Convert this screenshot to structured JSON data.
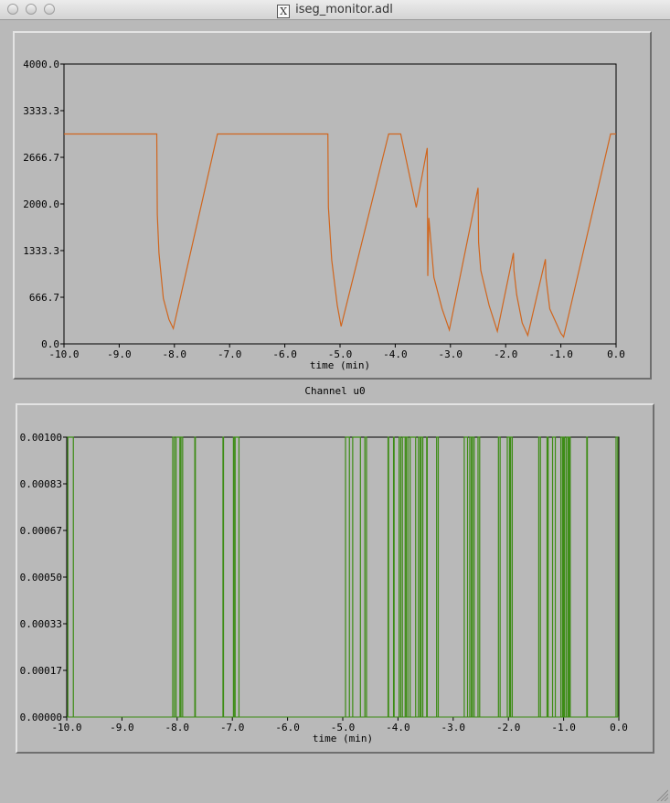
{
  "window": {
    "title": "iseg_monitor.adl",
    "title_icon": "x11-icon"
  },
  "separator_label": "Channel u0",
  "chart_data": [
    {
      "type": "line",
      "xlabel": "time (min)",
      "ylabel": "",
      "xlim": [
        -10.0,
        0.0
      ],
      "ylim": [
        0.0,
        4000.0
      ],
      "x_ticks": [
        "-10.0",
        "-9.0",
        "-8.0",
        "-7.0",
        "-6.0",
        "-5.0",
        "-4.0",
        "-3.0",
        "-2.0",
        "-1.0",
        "0.0"
      ],
      "y_ticks": [
        "0.0",
        "666.7",
        "1333.3",
        "2000.0",
        "2666.7",
        "3333.3",
        "4000.0"
      ],
      "series": [
        {
          "color": "#d0661e",
          "x": [
            -10.0,
            -8.32,
            -8.31,
            -8.28,
            -8.2,
            -8.1,
            -8.02,
            -7.22,
            -5.22,
            -5.21,
            -5.15,
            -5.05,
            -4.98,
            -4.12,
            -3.9,
            -3.62,
            -3.42,
            -3.41,
            -3.39,
            -3.3,
            -3.15,
            -3.02,
            -2.5,
            -2.49,
            -2.45,
            -2.3,
            -2.15,
            -1.86,
            -1.85,
            -1.8,
            -1.7,
            -1.6,
            -1.28,
            -1.27,
            -1.2,
            -1.0,
            -0.95,
            -0.1,
            0.0
          ],
          "y": [
            3000,
            3000,
            1850,
            1300,
            650,
            350,
            220,
            3000,
            3000,
            1950,
            1200,
            550,
            250,
            3000,
            3000,
            1950,
            2800,
            970,
            1800,
            950,
            500,
            200,
            2230,
            1450,
            1050,
            550,
            180,
            1300,
            1050,
            700,
            300,
            120,
            1210,
            950,
            500,
            150,
            100,
            3000,
            3000
          ]
        }
      ]
    },
    {
      "type": "line",
      "xlabel": "time (min)",
      "ylabel": "",
      "xlim": [
        -10.0,
        0.0
      ],
      "ylim": [
        0.0,
        0.001
      ],
      "x_ticks": [
        "-10.0",
        "-9.0",
        "-8.0",
        "-7.0",
        "-6.0",
        "-5.0",
        "-4.0",
        "-3.0",
        "-2.0",
        "-1.0",
        "0.0"
      ],
      "y_ticks": [
        "0.00000",
        "0.00017",
        "0.00033",
        "0.00050",
        "0.00067",
        "0.00083",
        "0.00100"
      ],
      "series": [
        {
          "color": "#3c8c14",
          "baseline": 0.0,
          "level": 0.001,
          "pulses": [
            [
              -9.98,
              -9.88
            ],
            [
              -8.08,
              -8.05
            ],
            [
              -8.02,
              -7.95
            ],
            [
              -7.93,
              -7.9
            ],
            [
              -7.68,
              -7.67
            ],
            [
              -7.17,
              -7.16
            ],
            [
              -6.98,
              -6.97
            ],
            [
              -6.95,
              -6.88
            ],
            [
              -4.95,
              -4.88
            ],
            [
              -4.82,
              -4.68
            ],
            [
              -4.6,
              -4.57
            ],
            [
              -4.18,
              -4.17
            ],
            [
              -4.08,
              -4.07
            ],
            [
              -3.98,
              -3.95
            ],
            [
              -3.92,
              -3.87
            ],
            [
              -3.85,
              -3.82
            ],
            [
              -3.78,
              -3.68
            ],
            [
              -3.63,
              -3.6
            ],
            [
              -3.58,
              -3.55
            ],
            [
              -3.48,
              -3.47
            ],
            [
              -3.3,
              -3.27
            ],
            [
              -2.8,
              -2.74
            ],
            [
              -2.7,
              -2.67
            ],
            [
              -2.65,
              -2.62
            ],
            [
              -2.55,
              -2.52
            ],
            [
              -2.18,
              -2.15
            ],
            [
              -2.02,
              -1.98
            ],
            [
              -1.96,
              -1.93
            ],
            [
              -1.45,
              -1.42
            ],
            [
              -1.3,
              -1.28
            ],
            [
              -1.2,
              -1.15
            ],
            [
              -1.05,
              -1.02
            ],
            [
              -1.0,
              -0.98
            ],
            [
              -0.95,
              -0.92
            ],
            [
              -0.9,
              -0.88
            ],
            [
              -0.58,
              -0.57
            ],
            [
              -0.05,
              -0.02
            ]
          ]
        }
      ]
    }
  ]
}
